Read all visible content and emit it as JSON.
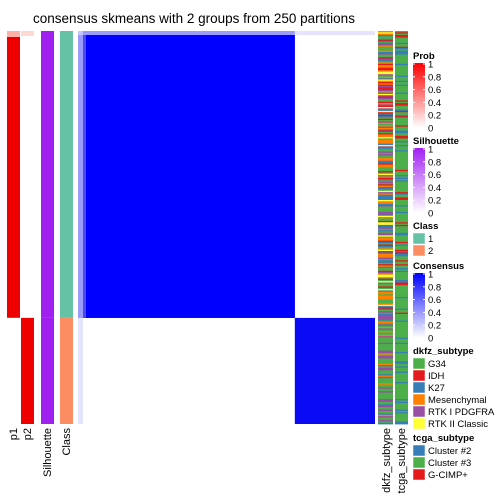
{
  "chart_data": {
    "type": "heatmap",
    "title": "consensus skmeans with 2 groups from 250 partitions",
    "n_samples": 300,
    "group_sizes": [
      219,
      81
    ],
    "columns": {
      "annotation_labels": [
        "p1",
        "p2",
        "Silhouette",
        "Class"
      ],
      "right_labels": [
        "dkfz_subtype",
        "tcga_subtype"
      ]
    },
    "legends": [
      {
        "title": "Prob",
        "type": "continuous",
        "ticks": [
          "1",
          "0.8",
          "0.6",
          "0.4",
          "0.2",
          "0"
        ],
        "colors": [
          "#ff0000",
          "#ffffff"
        ]
      },
      {
        "title": "Silhouette",
        "type": "continuous",
        "ticks": [
          "1",
          "0.8",
          "0.6",
          "0.4",
          "0.2",
          "0"
        ],
        "colors": [
          "#a020f0",
          "#ffffff"
        ]
      },
      {
        "title": "Class",
        "type": "discrete",
        "items": [
          {
            "label": "1",
            "color": "#66c2a5"
          },
          {
            "label": "2",
            "color": "#fc8d62"
          }
        ]
      },
      {
        "title": "Consensus",
        "type": "continuous",
        "ticks": [
          "1",
          "0.8",
          "0.6",
          "0.4",
          "0.2",
          "0"
        ],
        "colors": [
          "#0000ff",
          "#ffffff"
        ]
      },
      {
        "title": "dkfz_subtype",
        "type": "discrete",
        "items": [
          {
            "label": "G34",
            "color": "#4daf4a"
          },
          {
            "label": "IDH",
            "color": "#e41a1c"
          },
          {
            "label": "K27",
            "color": "#377eb8"
          },
          {
            "label": "Mesenchymal",
            "color": "#ff7f00"
          },
          {
            "label": "RTK I PDGFRA",
            "color": "#984ea3"
          },
          {
            "label": "RTK II Classic",
            "color": "#ffff33"
          }
        ]
      },
      {
        "title": "tcga_subtype",
        "type": "discrete",
        "items": [
          {
            "label": "Cluster #2",
            "color": "#377eb8"
          },
          {
            "label": "Cluster #3",
            "color": "#4daf4a"
          },
          {
            "label": "G-CIMP+",
            "color": "#e41a1c"
          }
        ]
      }
    ]
  }
}
